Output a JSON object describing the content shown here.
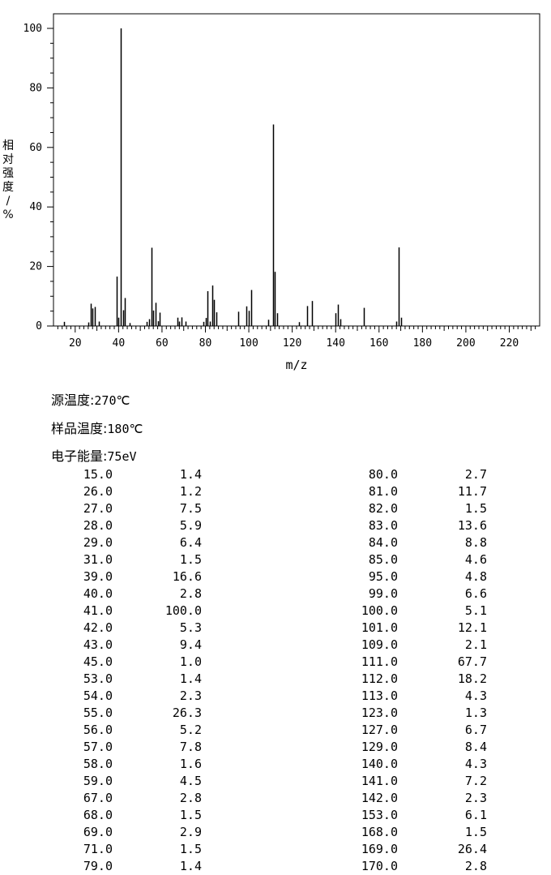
{
  "chart_data": {
    "type": "bar",
    "xlabel": "m/z",
    "ylabel": "相对强度/%",
    "xlim": [
      10,
      234
    ],
    "ylim": [
      0,
      100
    ],
    "xticks": [
      20,
      40,
      60,
      80,
      100,
      120,
      140,
      160,
      180,
      200,
      220
    ],
    "yticks": [
      0,
      20,
      40,
      60,
      80,
      100
    ],
    "x": [
      15.0,
      26.0,
      27.0,
      28.0,
      29.0,
      31.0,
      39.0,
      40.0,
      41.0,
      42.0,
      43.0,
      45.0,
      53.0,
      54.0,
      55.0,
      56.0,
      57.0,
      58.0,
      59.0,
      67.0,
      68.0,
      69.0,
      71.0,
      79.0,
      80.0,
      81.0,
      82.0,
      83.0,
      84.0,
      85.0,
      95.0,
      99.0,
      100.0,
      101.0,
      109.0,
      111.0,
      112.0,
      113.0,
      123.0,
      127.0,
      129.0,
      140.0,
      141.0,
      142.0,
      153.0,
      168.0,
      169.0,
      170.0
    ],
    "values": [
      1.4,
      1.2,
      7.5,
      5.9,
      6.4,
      1.5,
      16.6,
      2.8,
      100.0,
      5.3,
      9.4,
      1.0,
      1.4,
      2.3,
      26.3,
      5.2,
      7.8,
      1.6,
      4.5,
      2.8,
      1.5,
      2.9,
      1.5,
      1.4,
      2.7,
      11.7,
      1.5,
      13.6,
      8.8,
      4.6,
      4.8,
      6.6,
      5.1,
      12.1,
      2.1,
      67.7,
      18.2,
      4.3,
      1.3,
      6.7,
      8.4,
      4.3,
      7.2,
      2.3,
      6.1,
      1.5,
      26.4,
      2.8
    ]
  },
  "conditions": {
    "source_temp_label": "源温度:",
    "source_temp_value": "270℃",
    "sample_temp_label": "样品温度:",
    "sample_temp_value": "180℃",
    "energy_label": "电子能量:",
    "energy_value": "75eV"
  },
  "table": {
    "left": [
      [
        "15.0",
        "1.4"
      ],
      [
        "26.0",
        "1.2"
      ],
      [
        "27.0",
        "7.5"
      ],
      [
        "28.0",
        "5.9"
      ],
      [
        "29.0",
        "6.4"
      ],
      [
        "31.0",
        "1.5"
      ],
      [
        "39.0",
        "16.6"
      ],
      [
        "40.0",
        "2.8"
      ],
      [
        "41.0",
        "100.0"
      ],
      [
        "42.0",
        "5.3"
      ],
      [
        "43.0",
        "9.4"
      ],
      [
        "45.0",
        "1.0"
      ],
      [
        "53.0",
        "1.4"
      ],
      [
        "54.0",
        "2.3"
      ],
      [
        "55.0",
        "26.3"
      ],
      [
        "56.0",
        "5.2"
      ],
      [
        "57.0",
        "7.8"
      ],
      [
        "58.0",
        "1.6"
      ],
      [
        "59.0",
        "4.5"
      ],
      [
        "67.0",
        "2.8"
      ],
      [
        "68.0",
        "1.5"
      ],
      [
        "69.0",
        "2.9"
      ],
      [
        "71.0",
        "1.5"
      ],
      [
        "79.0",
        "1.4"
      ]
    ],
    "right": [
      [
        "80.0",
        "2.7"
      ],
      [
        "81.0",
        "11.7"
      ],
      [
        "82.0",
        "1.5"
      ],
      [
        "83.0",
        "13.6"
      ],
      [
        "84.0",
        "8.8"
      ],
      [
        "85.0",
        "4.6"
      ],
      [
        "95.0",
        "4.8"
      ],
      [
        "99.0",
        "6.6"
      ],
      [
        "100.0",
        "5.1"
      ],
      [
        "101.0",
        "12.1"
      ],
      [
        "109.0",
        "2.1"
      ],
      [
        "111.0",
        "67.7"
      ],
      [
        "112.0",
        "18.2"
      ],
      [
        "113.0",
        "4.3"
      ],
      [
        "123.0",
        "1.3"
      ],
      [
        "127.0",
        "6.7"
      ],
      [
        "129.0",
        "8.4"
      ],
      [
        "140.0",
        "4.3"
      ],
      [
        "141.0",
        "7.2"
      ],
      [
        "142.0",
        "2.3"
      ],
      [
        "153.0",
        "6.1"
      ],
      [
        "168.0",
        "1.5"
      ],
      [
        "169.0",
        "26.4"
      ],
      [
        "170.0",
        "2.8"
      ]
    ]
  }
}
